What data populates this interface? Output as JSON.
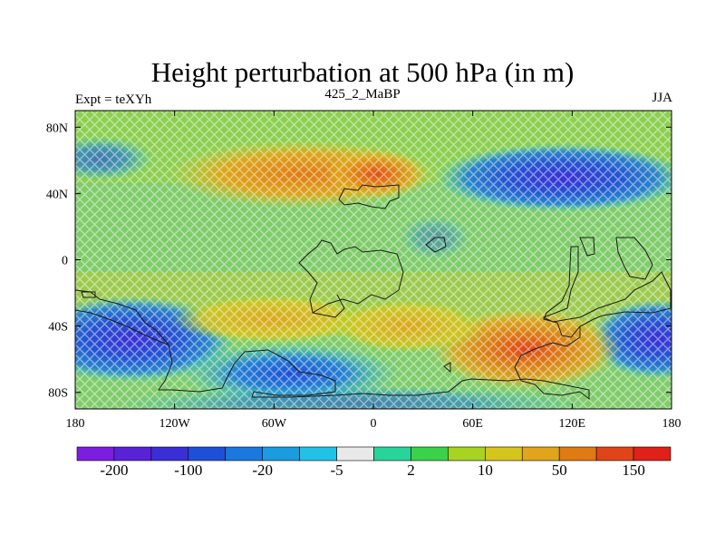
{
  "title": "Height perturbation at 500 hPa (in m)",
  "left_label": "Expt = teXYh",
  "center_label": "425_2_MaBP",
  "right_label": "JJA",
  "lat_ticks": [
    {
      "value": 80,
      "label": "80N"
    },
    {
      "value": 40,
      "label": "40N"
    },
    {
      "value": 0,
      "label": "0"
    },
    {
      "value": -40,
      "label": "40S"
    },
    {
      "value": -80,
      "label": "80S"
    }
  ],
  "lon_ticks": [
    {
      "value": -180,
      "label": "180"
    },
    {
      "value": -120,
      "label": "120W"
    },
    {
      "value": -60,
      "label": "60W"
    },
    {
      "value": 0,
      "label": "0"
    },
    {
      "value": 60,
      "label": "60E"
    },
    {
      "value": 120,
      "label": "120E"
    },
    {
      "value": 180,
      "label": "180"
    }
  ],
  "colorbar": {
    "colors": [
      "#7c1ee0",
      "#5a22d8",
      "#3a2fd6",
      "#1f4fd8",
      "#1a78de",
      "#1a9ce0",
      "#22c2e6",
      "#e9e9e9",
      "#27d49a",
      "#3ad24a",
      "#a6d421",
      "#d4c51d",
      "#e0a51a",
      "#e07a12",
      "#e0451a",
      "#e0201a"
    ],
    "labels": [
      "-200",
      "-100",
      "-20",
      "-5",
      "2",
      "10",
      "50",
      "150"
    ]
  },
  "field": {
    "background_color": "#7fcc6a",
    "anomalies": [
      {
        "sign": "positive",
        "lon": -10,
        "lat": 45,
        "color": "#e0a51a"
      },
      {
        "sign": "positive",
        "lon": 10,
        "lat": 45,
        "color": "#e07a12"
      },
      {
        "sign": "negative",
        "lon": 115,
        "lat": 45,
        "color": "#1f4fd8"
      },
      {
        "sign": "negative",
        "lon": -150,
        "lat": -45,
        "color": "#3a2fd6"
      },
      {
        "sign": "negative",
        "lon": -40,
        "lat": -65,
        "color": "#1f4fd8"
      },
      {
        "sign": "negative",
        "lon": 165,
        "lat": -45,
        "color": "#1f4fd8"
      },
      {
        "sign": "positive",
        "lon": 90,
        "lat": -55,
        "color": "#e07a12"
      },
      {
        "sign": "positive",
        "lon": 95,
        "lat": -55,
        "color": "#e0451a"
      },
      {
        "sign": "positive",
        "lon": -70,
        "lat": -35,
        "color": "#e0a51a"
      },
      {
        "sign": "positive",
        "lon": 20,
        "lat": -35,
        "color": "#e0a51a"
      }
    ]
  }
}
